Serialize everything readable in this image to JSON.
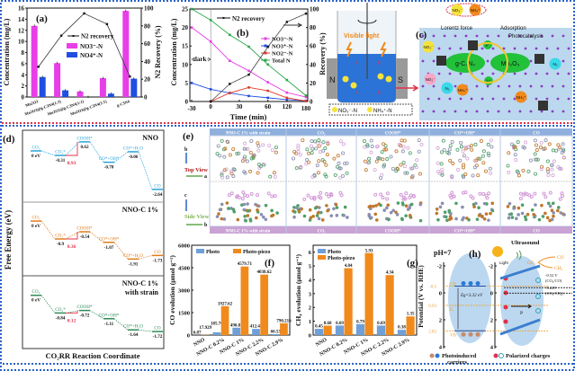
{
  "colors": {
    "magenta": "#e83ee8",
    "blue": "#1f4fe0",
    "red": "#e03a2a",
    "green": "#2aa84a",
    "black": "#222222",
    "orange": "#f08a1c",
    "photo": "#6f9fd8",
    "nno": "#2aa4dc",
    "nnoc": "#e07b1a",
    "strain": "#2e8b57",
    "barrier": "#e0304a"
  },
  "panels": {
    "a": "(a)",
    "b": "(b)",
    "c": "(c)",
    "d": "(d)",
    "e": "(e)",
    "f": "(f)",
    "g": "(g)",
    "h": "(h)"
  },
  "chart_data": [
    {
      "id": "a",
      "type": "bar",
      "categories": [
        "Mn2O3",
        "Mn2O3@g-C3N4(1:2)",
        "Mn2O3@g-C3N4(1:1)",
        "Mn2O3@g-C3N4(2:1)",
        "g-C3N4"
      ],
      "series": [
        {
          "name": "NO3⁻-N",
          "values": [
            12.8,
            6.1,
            1.0,
            3.4,
            15.5
          ]
        },
        {
          "name": "NO4⁺-N",
          "values": [
            3.6,
            1.2,
            0.0,
            0.6,
            3.3
          ]
        }
      ],
      "line": {
        "name": "N2 recovery",
        "values": [
          34,
          69,
          94,
          82,
          23
        ]
      },
      "ylabel": "Concentration (mg/L)",
      "y2label": "N2 Recovery (%)",
      "ylim": [
        0,
        16
      ],
      "yticks": [
        0,
        2,
        4,
        6,
        8,
        10,
        12,
        14,
        16
      ],
      "y2lim": [
        0,
        100
      ],
      "y2ticks": [
        0,
        20,
        40,
        60,
        80,
        100
      ]
    },
    {
      "id": "b",
      "type": "line",
      "x": [
        -30,
        0,
        20,
        40,
        60,
        120,
        180
      ],
      "xticks": [
        -30,
        0,
        30,
        60,
        120,
        180
      ],
      "series": [
        {
          "name": "NO3⁻-N",
          "values": [
            20,
            16.2,
            11,
            8.3,
            5.2,
            2.4,
            1.2
          ]
        },
        {
          "name": "NO3⁺-N",
          "values": [
            5,
            3.3,
            2.3,
            1.5,
            1.0,
            0.5,
            0.2
          ]
        },
        {
          "name": "NO2⁻-N",
          "values": [
            null,
            0,
            2.3,
            3.8,
            2.9,
            1.0,
            0.1
          ]
        },
        {
          "name": "Total N",
          "values": [
            25,
            22,
            18,
            14.8,
            10,
            5.8,
            1.6
          ]
        }
      ],
      "line": {
        "name": "N2 recovery",
        "values": [
          null,
          0,
          19,
          29,
          59,
          86,
          95
        ]
      },
      "annotation": "dark",
      "xlabel": "Time (min)",
      "ylabel": "Concentration (mg/L)",
      "y2label": "Recovery (%)",
      "ylim": [
        0,
        25
      ],
      "yticks": [
        0,
        5,
        10,
        15,
        20,
        25
      ],
      "y2lim": [
        0,
        100
      ],
      "y2ticks": [
        0,
        20,
        40,
        60,
        80,
        100
      ]
    },
    {
      "id": "f",
      "type": "bar",
      "categories": [
        "NNO",
        "NNO-C 0.2%",
        "NNO-C 1%",
        "NNO-C 2.2%",
        "NNO-C 2.9%"
      ],
      "series": [
        {
          "name": "Photo",
          "values": [
            6.87,
            185.76,
            490.81,
            412.43,
            60.53
          ],
          "labels": [
            "6.87",
            "185.76",
            "490.81",
            "412.43",
            "60.53"
          ]
        },
        {
          "name": "Photo-piezo",
          "values": [
            17.929,
            1927.62,
            4579.71,
            4038.62,
            790.216
          ],
          "labels": [
            "17.929",
            "1927.62",
            "4579.71",
            "4038.62",
            "790.216"
          ]
        }
      ],
      "ylabel": "CO evolution (μmol g⁻¹)",
      "ylim": [
        0,
        6000
      ],
      "yticks": [
        0,
        1500,
        3000,
        4500,
        6000
      ]
    },
    {
      "id": "g",
      "type": "bar",
      "categories": [
        "NNO",
        "NNO-C 0.2%",
        "NNO-C 1%",
        "NNO-C 2.2%",
        "NNO-C 2.9%"
      ],
      "series": [
        {
          "name": "Photo",
          "values": [
            0.45,
            0.69,
            0.79,
            0.69,
            0.38
          ],
          "labels": [
            "0.45",
            "0.69",
            "0.79",
            "0.69",
            "0.38"
          ]
        },
        {
          "name": "Photo-piezo",
          "values": [
            0.68,
            4.84,
            5.93,
            4.34,
            1.35
          ],
          "labels": [
            "0.68",
            "4.84",
            "5.93",
            "4.34",
            "1.35"
          ]
        }
      ],
      "ylabel": "CH₄ evolution (μmol g⁻¹)",
      "ylim": [
        0,
        6.5
      ],
      "yticks": [
        0,
        1,
        2,
        3,
        4,
        5,
        6
      ]
    }
  ],
  "c": {
    "light": "Visible light",
    "n": "N",
    "s": "S",
    "f": "F",
    "legend_no3": "NO₃⁻-N",
    "legend_nh4": "NH₄⁺-N",
    "no3": "NO₃⁻",
    "nh4": "NH₄⁺",
    "no2": "NO₂⁻",
    "n2": "N₂",
    "lorentz": "Lorentz force",
    "adsorption": "Adsorption",
    "photocatalysis": "Photocatalysis",
    "gcn": "g-C₃N₄",
    "mn": "Mn₂O₃",
    "e": "e⁻",
    "h": "h⁺"
  },
  "d": {
    "ylabel": "Free Energy (eV)",
    "xlabel": "CO₂RR Reaction Coordinate",
    "zero": "0 eV",
    "systems": [
      {
        "title": [
          "NNO"
        ],
        "energies": [
          0,
          -0.31,
          0.62,
          -0.78,
          -0.06,
          -2.64
        ],
        "elabels": [
          "0 eV",
          "-0.31",
          "0.62",
          "-0.78",
          "-0.06",
          "-2.64"
        ],
        "species": [
          "CO₂",
          "CO₂*",
          "COOH*",
          "CO*+OH*",
          "CO*+H₂O",
          "CO"
        ],
        "barrier": "0.93"
      },
      {
        "title": [
          "NNO-C 1%"
        ],
        "energies": [
          0,
          -0.9,
          -0.54,
          -1.07,
          -1.91,
          -1.73
        ],
        "elabels": [
          "0 eV",
          "-0.9",
          "-0.54",
          "-1.07",
          "-1.91",
          "-1.73"
        ],
        "species": [
          "CO₂",
          "CO₂*",
          "COOH*",
          "CO*+OH*",
          "CO*+H₂O",
          "CO"
        ],
        "barrier": "0.36"
      },
      {
        "title": [
          "NNO-C 1%",
          "with strain"
        ],
        "energies": [
          0,
          -0.84,
          -0.72,
          -1.11,
          -1.64,
          -1.72
        ],
        "elabels": [
          "0 eV",
          "-0.84",
          "-0.72",
          "-1.11",
          "-1.64",
          "-1.72"
        ],
        "species": [
          "CO₂",
          "CO₂*",
          "COOH*",
          "CO*+OH*",
          "CO*+H₂O",
          "CO"
        ],
        "barrier": "0.12"
      }
    ]
  },
  "e": {
    "headers": [
      "NNO-C 1% with strain",
      "CO₂",
      "COOH*",
      "CO*+OH*",
      "CO"
    ],
    "top_view": "Top View",
    "side_view": "Side View",
    "axes_top": [
      "b",
      "a"
    ],
    "axes_side": [
      "c",
      "b"
    ]
  },
  "h": {
    "ph": "pH=7",
    "ylabel": "Potential (V vs. RHE)",
    "yticks": [
      -2,
      0,
      2,
      4
    ],
    "cb": "CB",
    "vb": "VB",
    "ef": "Eₓ",
    "cb_val": "-0.5",
    "ef_val": "0.93",
    "vb_val": "2.82",
    "eg": "Eg=3.32 eV",
    "ultrasound": "Ultrasound",
    "light": "Light",
    "co2": "CO₂",
    "co": "CO",
    "ch4": "CH₄",
    "pot1": "-0.52 V",
    "pot1b": "(CO₂/CO)",
    "pot2": "-0.24V",
    "pot2b": "(CO₂/CH₄)",
    "p": "P",
    "legend1": "Photoinduced",
    "legend1b": "carriers",
    "legend2": "Polarized charges",
    "cb_v": -0.5,
    "ef_v": 0.93,
    "vb_v": 2.82
  }
}
